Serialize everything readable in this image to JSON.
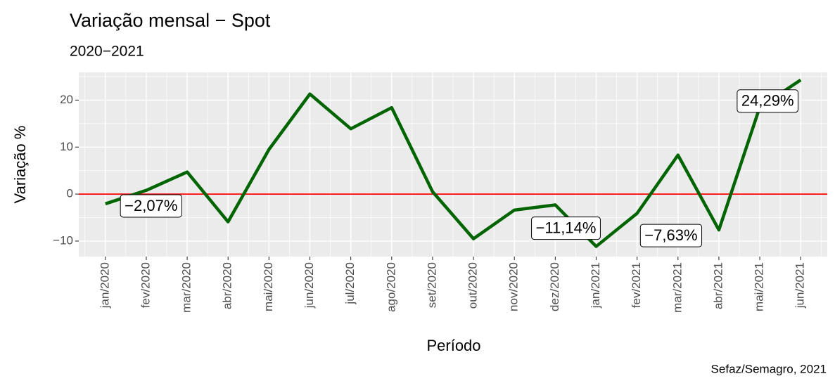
{
  "chart_data": {
    "type": "line",
    "title": "Variação mensal − Spot",
    "subtitle": "2020−2021",
    "x_label": "Período",
    "y_label": "Variação %",
    "caption": "Sefaz/Semagro, 2021",
    "categories": [
      "jan/2020",
      "fev/2020",
      "mar/2020",
      "abr/2020",
      "mai/2020",
      "jun/2020",
      "jul/2020",
      "ago/2020",
      "set/2020",
      "out/2020",
      "nov/2020",
      "dez/2020",
      "jan/2021",
      "fev/2021",
      "mar/2021",
      "abr/2021",
      "mai/2021",
      "jun/2021"
    ],
    "series": [
      {
        "name": "Variação",
        "color": "#006400",
        "values": [
          -2.07,
          0.8,
          4.7,
          -5.9,
          9.5,
          21.3,
          13.9,
          18.4,
          0.5,
          -9.5,
          -3.4,
          -2.3,
          -11.14,
          -4.1,
          8.3,
          -7.63,
          18.5,
          24.29
        ],
        "value_labels": [
          "−2,07%",
          null,
          null,
          null,
          null,
          null,
          null,
          null,
          null,
          null,
          null,
          null,
          "−11,14%",
          null,
          null,
          "−7,63%",
          null,
          "24,29%"
        ]
      }
    ],
    "ylim": [
      -13.3,
      25.9
    ],
    "yticks": [
      {
        "value": -10,
        "label": "−10"
      },
      0,
      10,
      20
    ],
    "grid": true,
    "reference_line": {
      "value": 0,
      "color": "#ff0000"
    }
  }
}
